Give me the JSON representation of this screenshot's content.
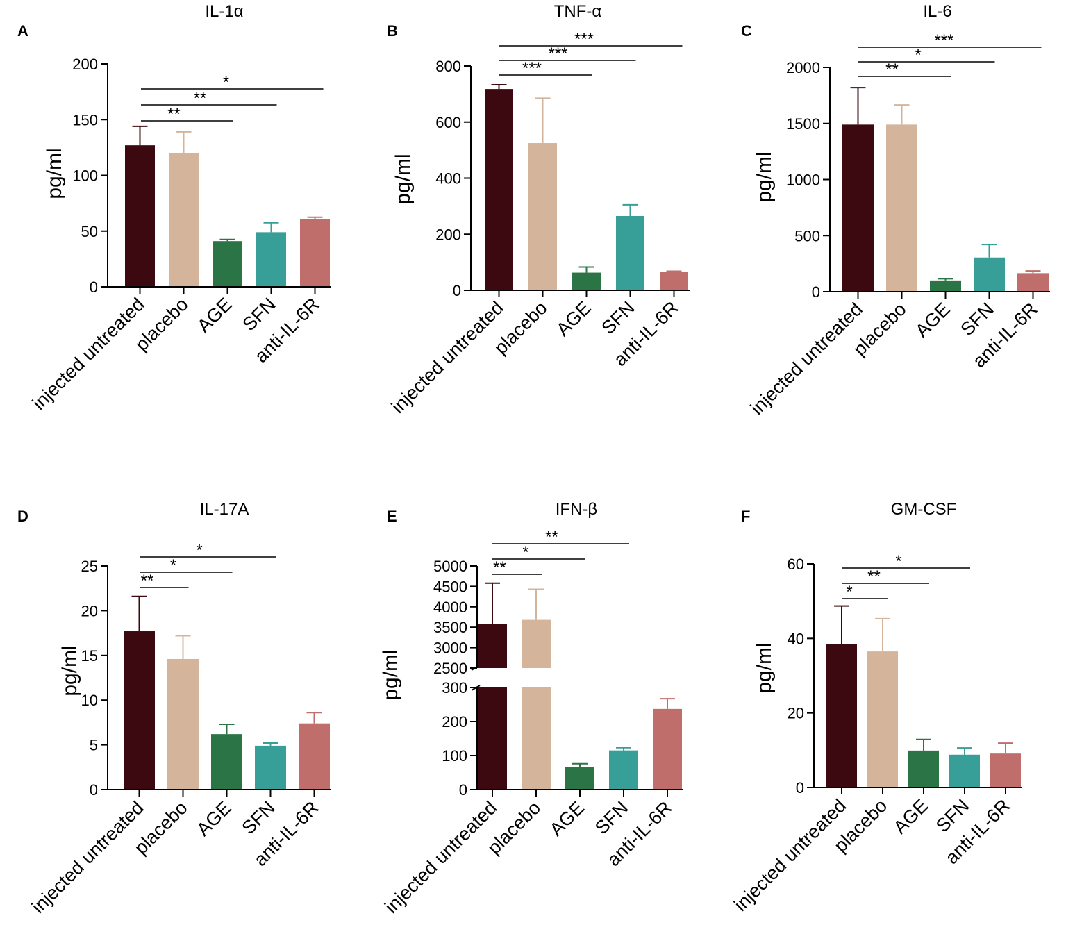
{
  "colors": {
    "injected_untreated": "#3b090f",
    "placebo": "#d4b59b",
    "AGE": "#2b7446",
    "SFN": "#389e98",
    "anti_IL6R": "#bf6e6c",
    "axis": "#000000"
  },
  "chart_data": [
    {
      "panel": "A",
      "type": "bar",
      "title": "IL-1α",
      "ylabel": "pg/ml",
      "xlabel": "",
      "categories": [
        "injected untreated",
        "placebo",
        "AGE",
        "SFN",
        "anti-IL-6R"
      ],
      "values": [
        127,
        120,
        41,
        49,
        61
      ],
      "errors": [
        17,
        19,
        1.5,
        8.5,
        1.5
      ],
      "ylim": [
        0,
        200
      ],
      "yticks": [
        0,
        50,
        100,
        150,
        200
      ],
      "significance": [
        {
          "from": 0,
          "to": 2,
          "label": "**"
        },
        {
          "from": 0,
          "to": 3,
          "label": "**"
        },
        {
          "from": 0,
          "to": 4,
          "label": "*"
        }
      ]
    },
    {
      "panel": "B",
      "type": "bar",
      "title": "TNF-α",
      "ylabel": "pg/ml",
      "xlabel": "",
      "categories": [
        "injected untreated",
        "placebo",
        "AGE",
        "SFN",
        "anti-IL-6R"
      ],
      "values": [
        718,
        525,
        63,
        265,
        65
      ],
      "errors": [
        15,
        160,
        20,
        40,
        3
      ],
      "ylim": [
        0,
        800
      ],
      "yticks": [
        0,
        200,
        400,
        600,
        800
      ],
      "significance": [
        {
          "from": 0,
          "to": 2,
          "label": "***"
        },
        {
          "from": 0,
          "to": 3,
          "label": "***"
        },
        {
          "from": 0,
          "to": 4,
          "label": "***"
        }
      ]
    },
    {
      "panel": "C",
      "type": "bar",
      "title": "IL-6",
      "ylabel": "pg/ml",
      "xlabel": "",
      "categories": [
        "injected untreated",
        "placebo",
        "AGE",
        "SFN",
        "anti-IL-6R"
      ],
      "values": [
        1490,
        1490,
        100,
        305,
        165
      ],
      "errors": [
        330,
        175,
        15,
        115,
        20
      ],
      "ylim": [
        0,
        2000
      ],
      "yticks": [
        0,
        500,
        1000,
        1500,
        2000
      ],
      "significance": [
        {
          "from": 0,
          "to": 2,
          "label": "**"
        },
        {
          "from": 0,
          "to": 3,
          "label": "*"
        },
        {
          "from": 0,
          "to": 4,
          "label": "***"
        }
      ]
    },
    {
      "panel": "D",
      "type": "bar",
      "title": "IL-17A",
      "ylabel": "pg/ml",
      "xlabel": "",
      "categories": [
        "injected untreated",
        "placebo",
        "AGE",
        "SFN",
        "anti-IL-6R"
      ],
      "values": [
        17.7,
        14.6,
        6.2,
        4.9,
        7.4
      ],
      "errors": [
        3.9,
        2.6,
        1.1,
        0.3,
        1.2
      ],
      "ylim": [
        0,
        25
      ],
      "yticks": [
        0,
        5,
        10,
        15,
        20,
        25
      ],
      "significance": [
        {
          "from": 0,
          "to": 1,
          "label": "**"
        },
        {
          "from": 0,
          "to": 2,
          "label": "*"
        },
        {
          "from": 0,
          "to": 3,
          "label": "*"
        }
      ]
    },
    {
      "panel": "E",
      "type": "bar",
      "title": "IFN-β",
      "ylabel": "pg/ml",
      "xlabel": "",
      "categories": [
        "injected untreated",
        "placebo",
        "AGE",
        "SFN",
        "anti-IL-6R"
      ],
      "values": [
        3580,
        3680,
        66,
        115,
        237
      ],
      "errors": [
        1000,
        750,
        10,
        8,
        30
      ],
      "broken_axis": {
        "lower": [
          0,
          300
        ],
        "upper": [
          2500,
          5000
        ]
      },
      "yticks_lower": [
        0,
        100,
        200,
        300
      ],
      "yticks_upper": [
        2500,
        3000,
        3500,
        4000,
        4500,
        5000
      ],
      "significance": [
        {
          "from": 0,
          "to": 1,
          "label": "**"
        },
        {
          "from": 0,
          "to": 2,
          "label": "*"
        },
        {
          "from": 0,
          "to": 3,
          "label": "**"
        }
      ]
    },
    {
      "panel": "F",
      "type": "bar",
      "title": "GM-CSF",
      "ylabel": "pg/ml",
      "xlabel": "",
      "categories": [
        "injected untreated",
        "placebo",
        "AGE",
        "SFN",
        "anti-IL-6R"
      ],
      "values": [
        38.5,
        36.5,
        9.9,
        8.8,
        9.1
      ],
      "errors": [
        10.2,
        8.8,
        3.0,
        1.8,
        2.8
      ],
      "ylim": [
        0,
        60
      ],
      "yticks": [
        0,
        20,
        40,
        60
      ],
      "significance": [
        {
          "from": 0,
          "to": 1,
          "label": "*"
        },
        {
          "from": 0,
          "to": 2,
          "label": "**"
        },
        {
          "from": 0,
          "to": 3,
          "label": "*"
        }
      ]
    }
  ]
}
